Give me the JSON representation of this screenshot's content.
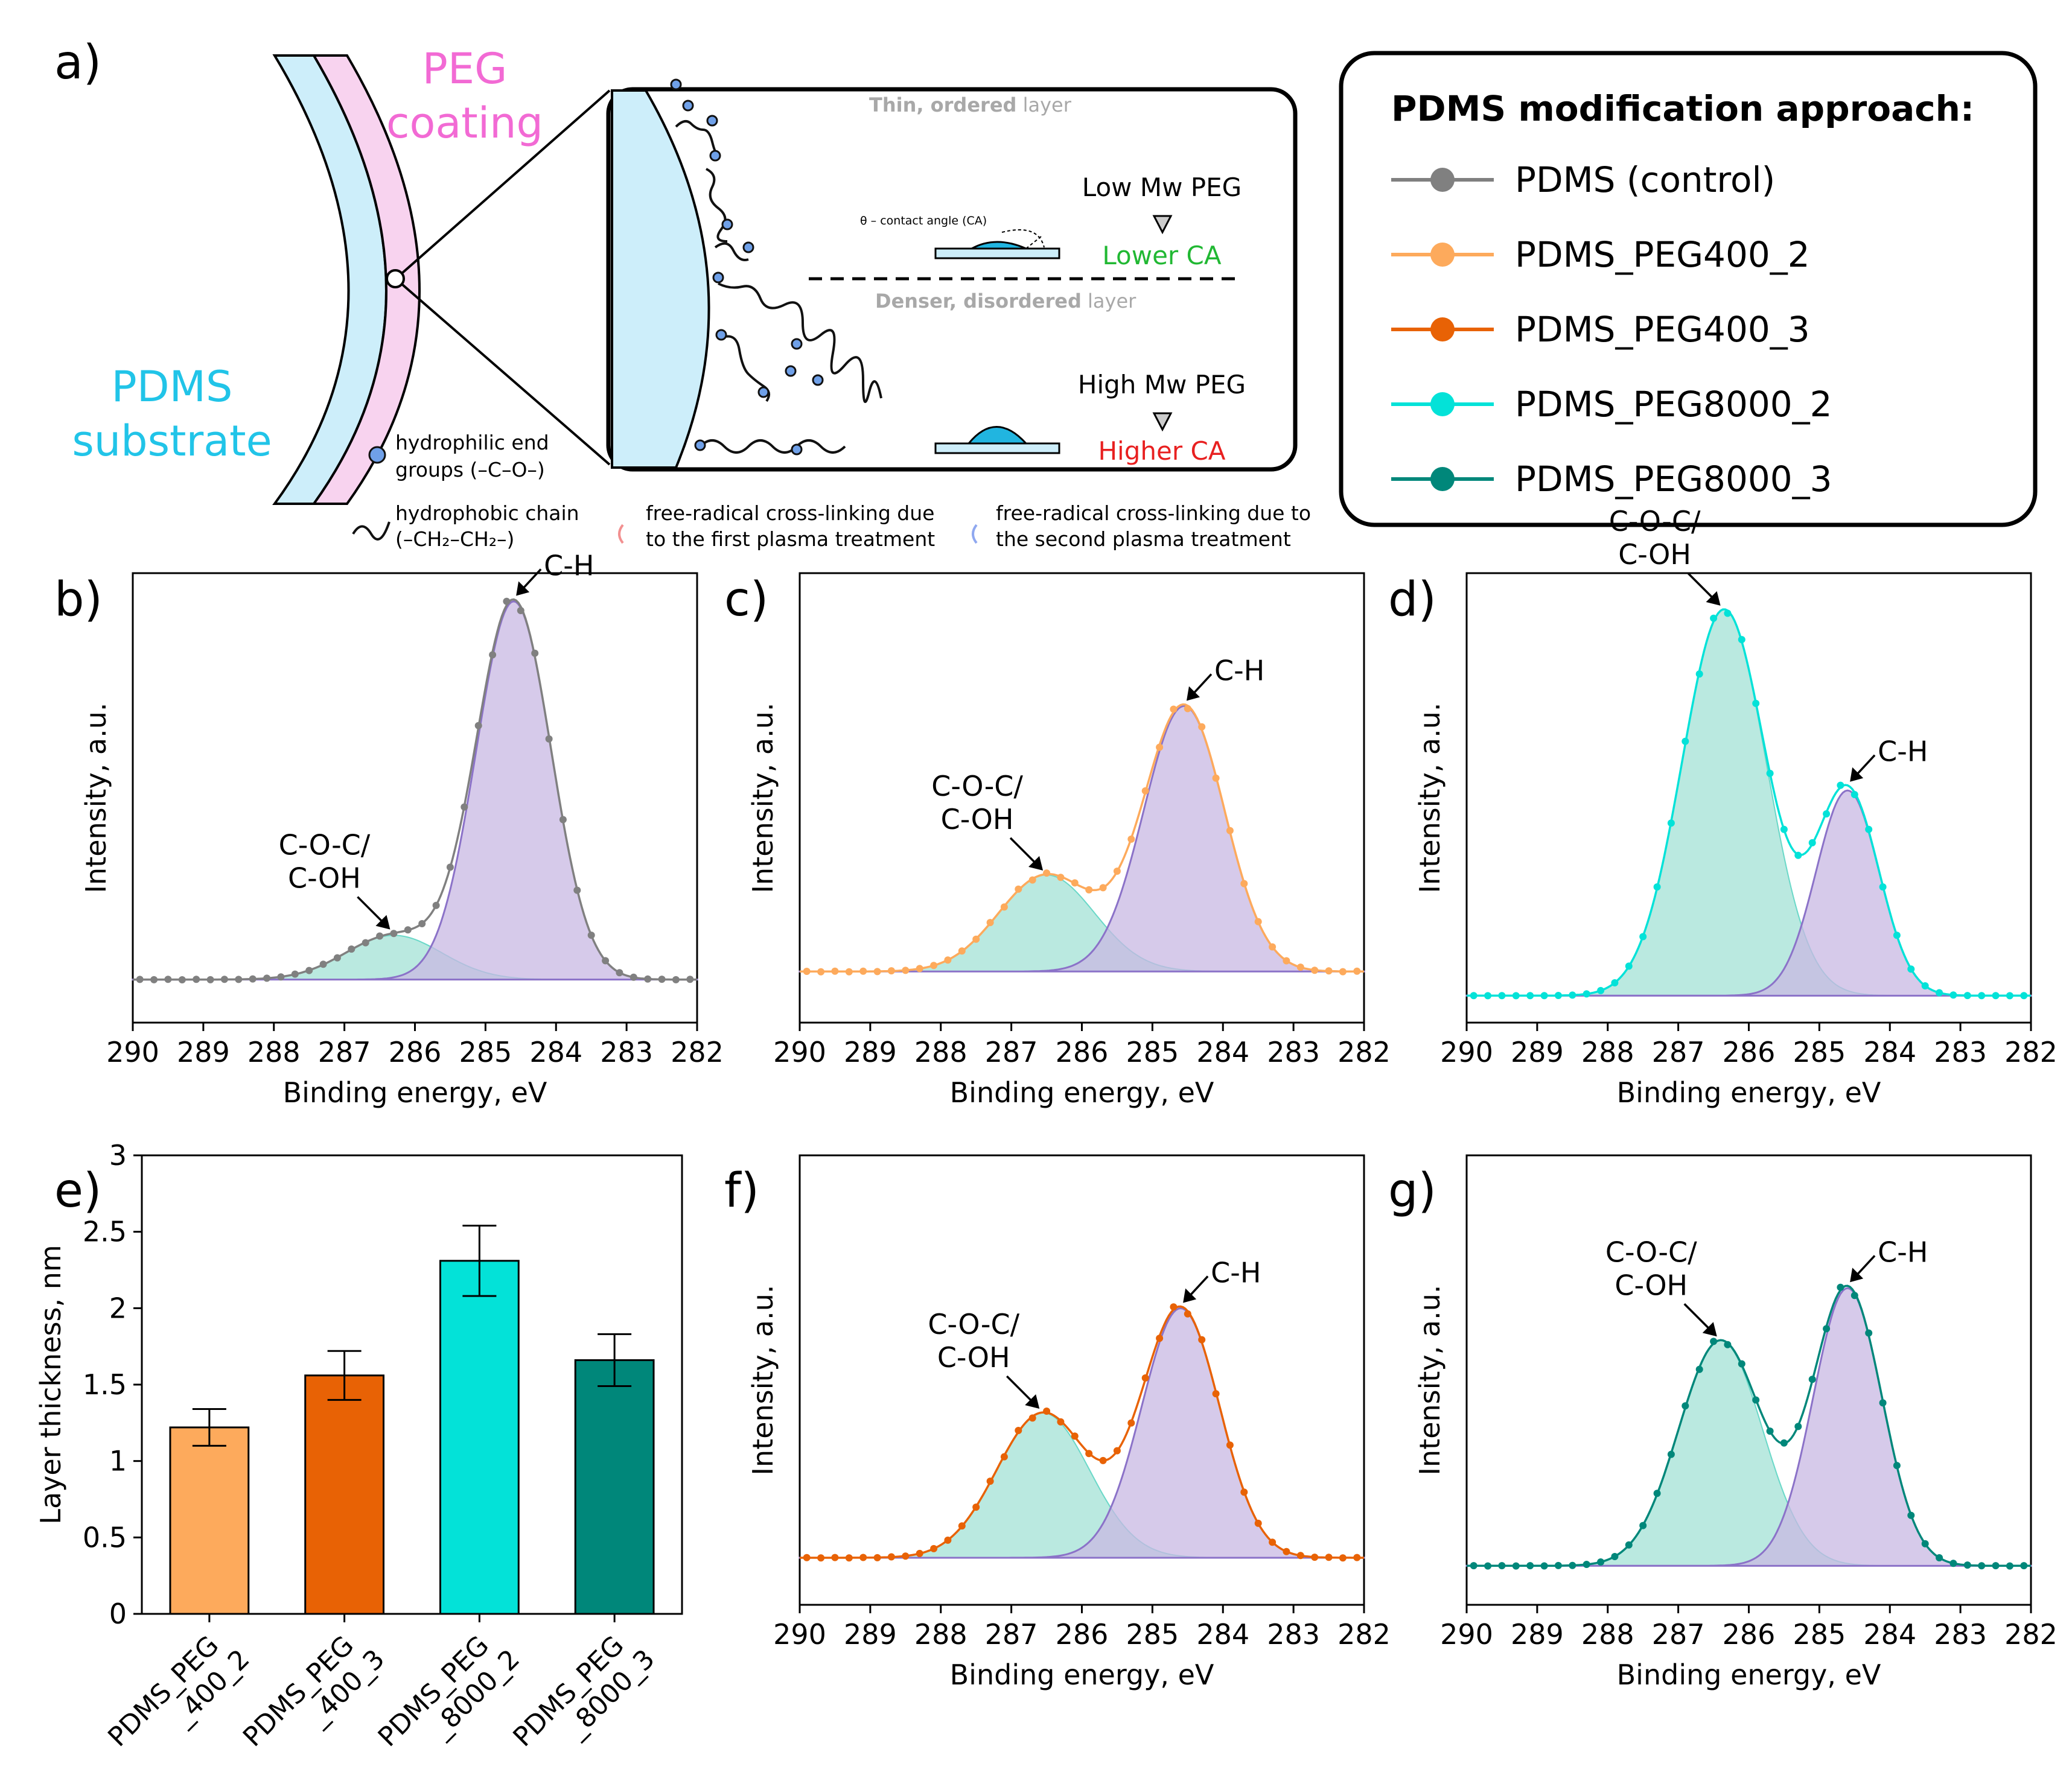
{
  "panel_labels": {
    "a": "a)",
    "b": "b)",
    "c": "c)",
    "d": "d)",
    "e": "e)",
    "f": "f)",
    "g": "g)"
  },
  "schematic": {
    "peg_coating_line1": "PEG",
    "peg_coating_line2": "coating",
    "pdms_substrate_line1": "PDMS",
    "pdms_substrate_line2": "substrate",
    "thin_ordered_bold": "Thin, ordered",
    "thin_ordered_rest": " layer",
    "denser_bold": "Denser, disordered",
    "denser_rest": " layer",
    "contact_angle_label": "θ – contact angle (CA)",
    "low_mw": "Low Mw PEG",
    "lower_ca": "Lower CA",
    "high_mw": "High Mw PEG",
    "higher_ca": "Higher CA",
    "key_end_groups_1": "hydrophilic end",
    "key_end_groups_2": "groups (–C–O–)",
    "key_chain_1": "hydrophobic chain",
    "key_chain_2": "(–CH₂–CH₂–)",
    "key_first_plasma_1": "free-radical cross-linking due",
    "key_first_plasma_2": "to the first plasma treatment",
    "key_second_plasma_1": "free-radical cross-linking due to",
    "key_second_plasma_2": "the second plasma treatment"
  },
  "legend": {
    "title": "PDMS modification approach:",
    "items": [
      {
        "label": "PDMS (control)",
        "color": "#808080"
      },
      {
        "label": "PDMS_PEG400_2",
        "color": "#fdaa5c"
      },
      {
        "label": "PDMS_PEG400_3",
        "color": "#e86205"
      },
      {
        "label": "PDMS_PEG8000_2",
        "color": "#03e2d8"
      },
      {
        "label": "PDMS_PEG8000_3",
        "color": "#00877a"
      }
    ]
  },
  "colors": {
    "coc_fill": "#a3e2d6",
    "ch_fill": "#c8b8e3",
    "ch_line": "#8b72c8",
    "coc_line": "#6ad8c8"
  },
  "chart_data": [
    {
      "panel": "b",
      "type": "line",
      "series_name": "PDMS (control)",
      "color": "#808080",
      "xlabel": "Binding energy, eV",
      "ylabel": "Intensity, a.u.",
      "xlim": [
        290,
        282
      ],
      "xticks": [
        290,
        289,
        288,
        287,
        286,
        285,
        284,
        283,
        282
      ],
      "ylim": [
        0,
        1
      ],
      "peaks": [
        {
          "label_line1": "C-O-C/",
          "label_line2": "C-OH",
          "center": 286.3,
          "height": 0.16,
          "fwhm": 1.6
        },
        {
          "label_line1": "C-H",
          "label_line2": "",
          "center": 284.6,
          "height": 0.99,
          "fwhm": 1.25
        }
      ],
      "baseline": 0.05
    },
    {
      "panel": "c",
      "type": "line",
      "series_name": "PDMS_PEG400_2",
      "color": "#fdaa5c",
      "xlabel": "Binding energy, eV",
      "ylabel": "Intensity, a.u.",
      "xlim": [
        290,
        282
      ],
      "xticks": [
        290,
        289,
        288,
        287,
        286,
        285,
        284,
        283,
        282
      ],
      "ylim": [
        0,
        1
      ],
      "peaks": [
        {
          "label_line1": "C-O-C/",
          "label_line2": "C-OH",
          "center": 286.5,
          "height": 0.31,
          "fwhm": 1.6
        },
        {
          "label_line1": "C-H",
          "label_line2": "",
          "center": 284.55,
          "height": 0.73,
          "fwhm": 1.35
        }
      ],
      "baseline": 0.07
    },
    {
      "panel": "d",
      "type": "line",
      "series_name": "PDMS_PEG8000_2",
      "color": "#03e2d8",
      "xlabel": "Binding energy, eV",
      "ylabel": "Intensity, a.u.",
      "xlim": [
        290,
        282
      ],
      "xticks": [
        290,
        289,
        288,
        287,
        286,
        285,
        284,
        283,
        282
      ],
      "ylim": [
        0,
        1
      ],
      "peaks": [
        {
          "label_line1": "C-O-C/",
          "label_line2": "C-OH",
          "center": 286.35,
          "height": 0.97,
          "fwhm": 1.4
        },
        {
          "label_line1": "C-H",
          "label_line2": "",
          "center": 284.6,
          "height": 0.52,
          "fwhm": 1.05
        }
      ],
      "baseline": 0.01
    },
    {
      "panel": "e",
      "type": "bar",
      "ylabel": "Layer thickness, nm",
      "categories": [
        "PDMS_PEG\n_400_2",
        "PDMS_PEG\n_400_3",
        "PDMS_PEG\n_8000_2",
        "PDMS_PEG\n_8000_3"
      ],
      "values": [
        1.22,
        1.56,
        2.31,
        1.66
      ],
      "errors": [
        0.12,
        0.16,
        0.23,
        0.17
      ],
      "colors": [
        "#fdaa5c",
        "#e86205",
        "#03e2d8",
        "#00877a"
      ],
      "ylim": [
        0,
        3
      ],
      "yticks": [
        "0",
        "0.5",
        "1",
        "1.5",
        "2",
        "2.5",
        "3"
      ]
    },
    {
      "panel": "f",
      "type": "line",
      "series_name": "PDMS_PEG400_3",
      "color": "#e86205",
      "xlabel": "Binding energy, eV",
      "ylabel": "Intensity, a.u.",
      "xlim": [
        290,
        282
      ],
      "xticks": [
        290,
        289,
        288,
        287,
        286,
        285,
        284,
        283,
        282
      ],
      "ylim": [
        0,
        1
      ],
      "peaks": [
        {
          "label_line1": "C-O-C/",
          "label_line2": "C-OH",
          "center": 286.55,
          "height": 0.42,
          "fwhm": 1.55
        },
        {
          "label_line1": "C-H",
          "label_line2": "",
          "center": 284.6,
          "height": 0.68,
          "fwhm": 1.3
        }
      ],
      "baseline": 0.06
    },
    {
      "panel": "g",
      "type": "line",
      "series_name": "PDMS_PEG8000_3",
      "color": "#00877a",
      "xlabel": "Binding energy, eV",
      "ylabel": "Intensity, a.u.",
      "xlim": [
        290,
        282
      ],
      "xticks": [
        290,
        289,
        288,
        287,
        286,
        285,
        284,
        283,
        282
      ],
      "ylim": [
        0,
        1
      ],
      "peaks": [
        {
          "label_line1": "C-O-C/",
          "label_line2": "C-OH",
          "center": 286.4,
          "height": 0.6,
          "fwhm": 1.4
        },
        {
          "label_line1": "C-H",
          "label_line2": "",
          "center": 284.6,
          "height": 0.73,
          "fwhm": 1.15
        }
      ],
      "baseline": 0.04
    }
  ]
}
